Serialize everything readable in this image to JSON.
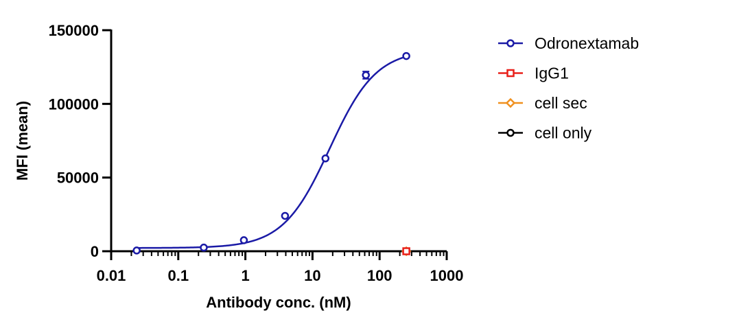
{
  "chart_data": {
    "type": "scatter",
    "title": "",
    "xlabel": "Antibody conc. (nM)",
    "ylabel": "MFI (mean)",
    "xscale": "log",
    "xlim": [
      0.01,
      1000
    ],
    "ylim": [
      0,
      150000
    ],
    "xticks": [
      0.01,
      0.1,
      1,
      10,
      100,
      1000
    ],
    "xtick_labels": [
      "0.01",
      "0.1",
      "1",
      "10",
      "100",
      "1000"
    ],
    "yticks": [
      0,
      50000,
      100000,
      150000
    ],
    "ytick_labels": [
      "0",
      "50000",
      "100000",
      "150000"
    ],
    "grid": false,
    "legend_position": "right",
    "series": [
      {
        "name": "Odronextamab",
        "color": "#1a1aa6",
        "marker": "circle",
        "x": [
          0.024,
          0.24,
          0.95,
          3.9,
          15.6,
          62.5,
          250
        ],
        "y": [
          500,
          2500,
          7500,
          24000,
          63000,
          119500,
          132500
        ],
        "error": [
          0,
          0,
          0,
          0,
          0,
          2500,
          0
        ],
        "fit": {
          "model": "4PL",
          "bottom": 2200,
          "top": 137000,
          "ec50": 18,
          "hill": 1.25
        }
      },
      {
        "name": "IgG1",
        "color": "#e8201a",
        "marker": "square",
        "x": [
          250
        ],
        "y": [
          0
        ]
      },
      {
        "name": "cell sec",
        "color": "#f0901e",
        "marker": "diamond",
        "x": [
          250
        ],
        "y": [
          0
        ]
      },
      {
        "name": "cell only",
        "color": "#000000",
        "marker": "circle",
        "x": [
          250
        ],
        "y": [
          0
        ]
      }
    ]
  }
}
